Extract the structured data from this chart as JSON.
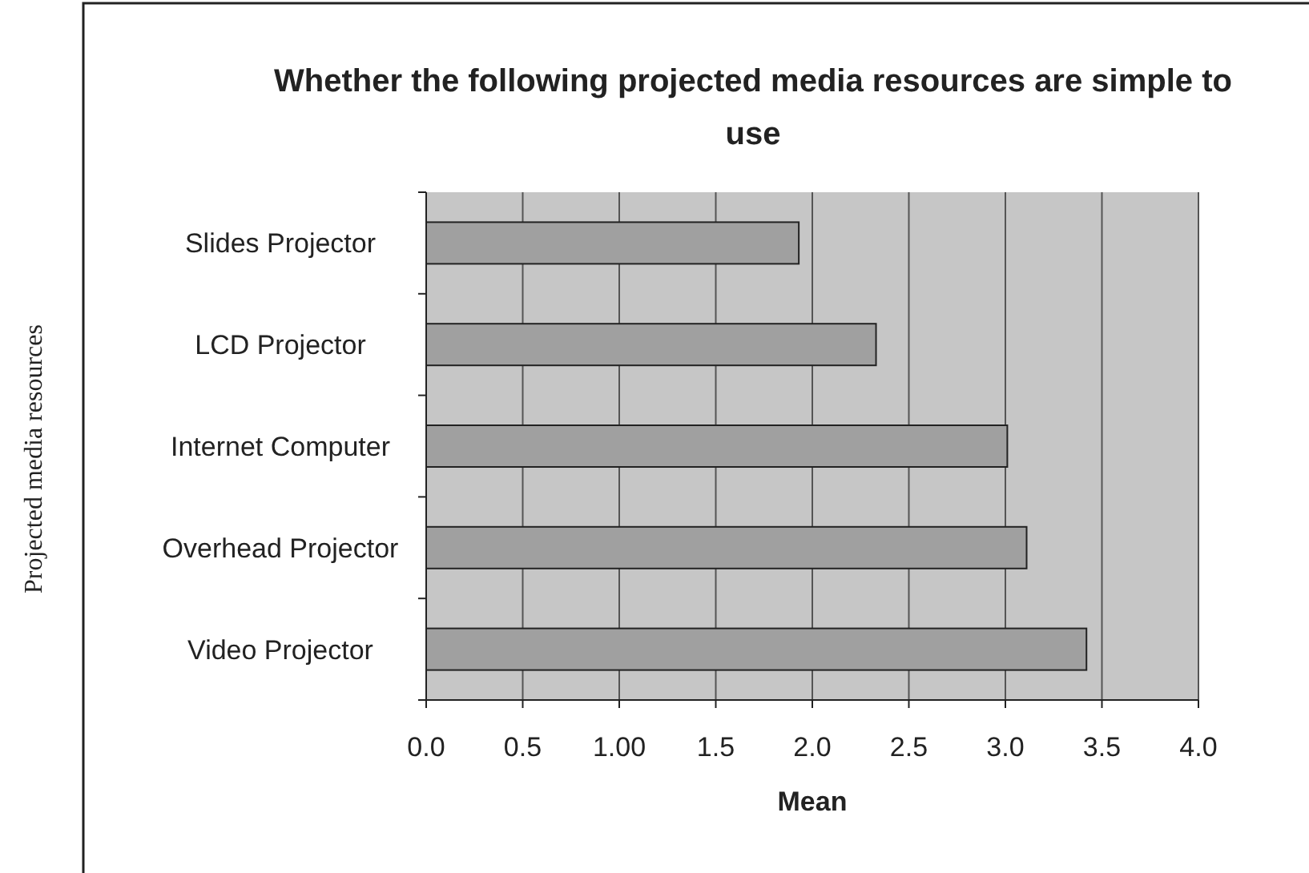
{
  "chart_data": {
    "type": "bar",
    "orientation": "horizontal",
    "title": "Whether the following projected media resources are simple to use",
    "xlabel": "Mean",
    "ylabel": "Projected media resources",
    "categories": [
      "Slides Projector",
      "LCD Projector",
      "Internet Computer",
      "Overhead Projector",
      "Video Projector"
    ],
    "values": [
      1.93,
      2.33,
      3.01,
      3.11,
      3.42
    ],
    "color": "#a0a0a0",
    "xlim": [
      0,
      4
    ],
    "xticks": [
      {
        "value": 0,
        "label": "0.0"
      },
      {
        "value": 0.5,
        "label": "0.5"
      },
      {
        "value": 1,
        "label": "1.00"
      },
      {
        "value": 1.5,
        "label": "1.5"
      },
      {
        "value": 2,
        "label": "2.0"
      },
      {
        "value": 2.5,
        "label": "2.5"
      },
      {
        "value": 3,
        "label": "3.0"
      },
      {
        "value": 3.5,
        "label": "3.5"
      },
      {
        "value": 4,
        "label": "4.0"
      }
    ],
    "grid": "x"
  }
}
